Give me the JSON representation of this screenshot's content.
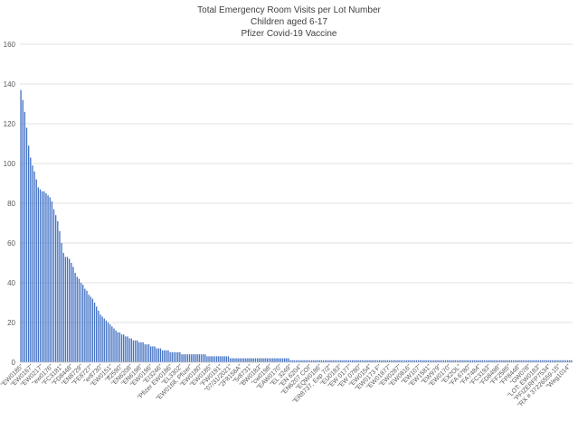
{
  "chart_data": {
    "type": "bar",
    "title": "Total Emergency Room Visits per Lot Number",
    "subtitle_lines": [
      "Children aged 6-17",
      "Pfizer Covid-19 Vaccine"
    ],
    "xlabel": "",
    "ylabel": "",
    "ylim": [
      0,
      160
    ],
    "yticks": [
      0,
      20,
      40,
      60,
      80,
      100,
      120,
      140,
      160
    ],
    "grid": true,
    "legend": "none",
    "bar_color": "#4472c4",
    "grid_color": "#d9d9d9",
    "series_count": 285,
    "values_head": [
      137,
      132,
      126,
      118,
      109,
      103,
      99,
      96,
      92,
      88,
      87,
      86,
      86,
      85,
      84,
      83,
      81,
      77,
      74,
      71,
      66,
      60,
      55,
      53,
      53,
      52,
      50,
      48,
      45,
      43,
      42,
      40,
      39,
      37,
      36,
      34,
      33,
      32,
      30,
      28,
      26,
      24,
      23,
      22,
      21,
      20,
      19,
      18,
      17,
      16,
      15,
      15,
      14,
      14,
      13,
      13,
      12,
      12,
      11,
      11,
      11,
      10,
      10,
      10,
      9,
      9,
      9,
      8,
      8,
      8,
      7,
      7,
      7,
      6,
      6,
      6,
      6,
      5,
      5,
      5,
      5,
      5,
      5,
      4,
      4,
      4,
      4,
      4,
      4,
      4,
      4,
      4,
      4,
      4,
      4,
      4,
      3,
      3,
      3,
      3,
      3,
      3,
      3,
      3,
      3,
      3,
      3,
      3,
      2,
      2,
      2,
      2,
      2,
      2,
      2,
      2,
      2,
      2,
      2,
      2,
      2,
      2,
      2,
      2,
      2,
      2,
      2,
      2,
      2,
      2,
      2,
      2,
      2,
      2,
      2,
      2,
      2,
      2,
      2
    ],
    "tail_value": 1,
    "categories": [
      "\"EW0185\"",
      "\"EW0167\"",
      "\"EW0217\"",
      "\"ew0176\"",
      "\"FC3181\"",
      "\"FD8448\"",
      "\"EN8729\"",
      "\"FE8727\"",
      "\"er8730\"",
      "\"EW0151\"",
      "\"ff2590\"",
      "\"EN6208\"",
      "\"EN6198\"",
      "\"EW0196\"",
      "\"EI3246\"",
      "\"Pfizer EW0186\"",
      "\"EL3302\"",
      "\"EW0168, Pfizer\"",
      "\"EW0180\"",
      "\"EW0185\"",
      "\"FW0191\"",
      "\"07/31/2021\"",
      "\"2F8158A\"",
      "\"5r8731\"",
      "\"BW0183\"",
      "\"cw0198\"",
      "\"EAW0170\"",
      "\"EL 3249\"",
      "\"EN 6204\"",
      "\"EN6207 COI\"",
      "\"EQW0186\"",
      "\"ER8737, Exp 7/2\"",
      "\"EU0183\"",
      "\"EW 0177\"",
      "\"EW 0780\"",
      "\"EW0154\"",
      "\"EW0173 F\"",
      "\"EW01877\"",
      "\"EW0287\"",
      "\"EW0816\"",
      "\"EW107\"",
      "\"EW1581\"",
      "\"EW979\"",
      "\"EW0170\"",
      "\"EX2OL\"",
      "\"FA 6780\"",
      "\"FA7484\"",
      "\"FC3193\"",
      "\"FD8498\"",
      "\"FF2585\"",
      "\"FP8448\"",
      "\"GW078\"",
      "\"LOT: EW0183\"",
      "\"PFIZERFP7534\"",
      "\"RX # 37226559-15\"",
      "\"Weg1014\""
    ]
  }
}
